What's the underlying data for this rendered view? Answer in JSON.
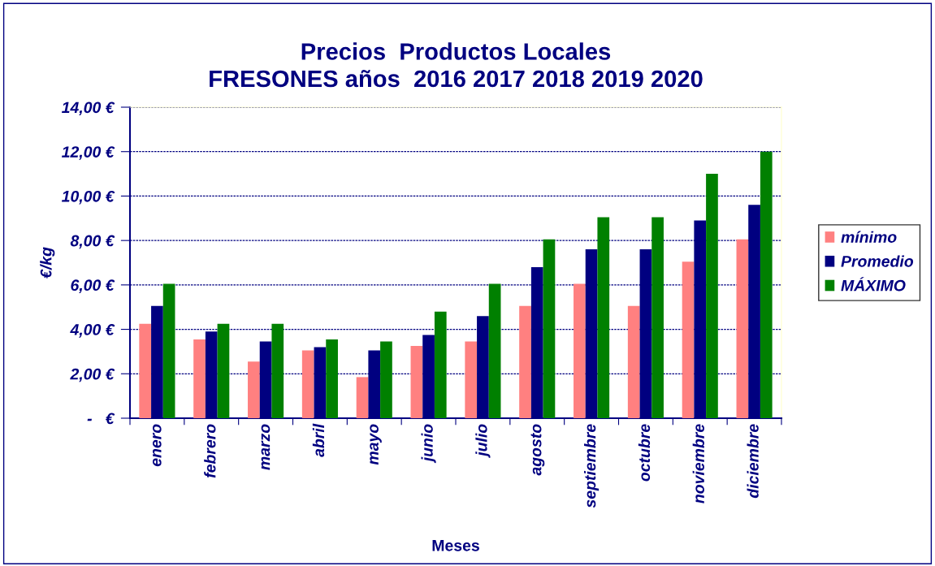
{
  "chart_data": {
    "type": "bar",
    "title": "Precios  Productos Locales\nFRESONES años  2016 2017 2018 2019 2020",
    "xlabel": "Meses",
    "ylabel": "€/kg",
    "categories": [
      "enero",
      "febrero",
      "marzo",
      "abril",
      "mayo",
      "junio",
      "julio",
      "agosto",
      "septiembre",
      "octubre",
      "noviembre",
      "diciembre"
    ],
    "series": [
      {
        "name": "mínimo",
        "color": "#ff8080",
        "values": [
          4.25,
          3.55,
          2.55,
          3.05,
          1.85,
          3.25,
          3.45,
          5.05,
          6.05,
          5.05,
          7.05,
          8.05
        ]
      },
      {
        "name": "Promedio",
        "color": "#000080",
        "values": [
          5.05,
          3.9,
          3.45,
          3.2,
          3.05,
          3.75,
          4.6,
          6.8,
          7.6,
          7.6,
          8.9,
          9.6
        ]
      },
      {
        "name": "MÁXIMO",
        "color": "#008000",
        "values": [
          6.05,
          4.25,
          4.25,
          3.55,
          3.45,
          4.8,
          6.05,
          8.05,
          9.05,
          9.05,
          11.0,
          12.0
        ]
      }
    ],
    "ylim": [
      0,
      14
    ],
    "yticks": [
      {
        "value": 0,
        "label": "-   €"
      },
      {
        "value": 2,
        "label": "2,00 €"
      },
      {
        "value": 4,
        "label": "4,00 €"
      },
      {
        "value": 6,
        "label": "6,00 €"
      },
      {
        "value": 8,
        "label": "8,00 €"
      },
      {
        "value": 10,
        "label": "10,00 €"
      },
      {
        "value": 12,
        "label": "12,00 €"
      },
      {
        "value": 14,
        "label": "14,00 €"
      }
    ],
    "grid": "y",
    "legend": "right"
  }
}
